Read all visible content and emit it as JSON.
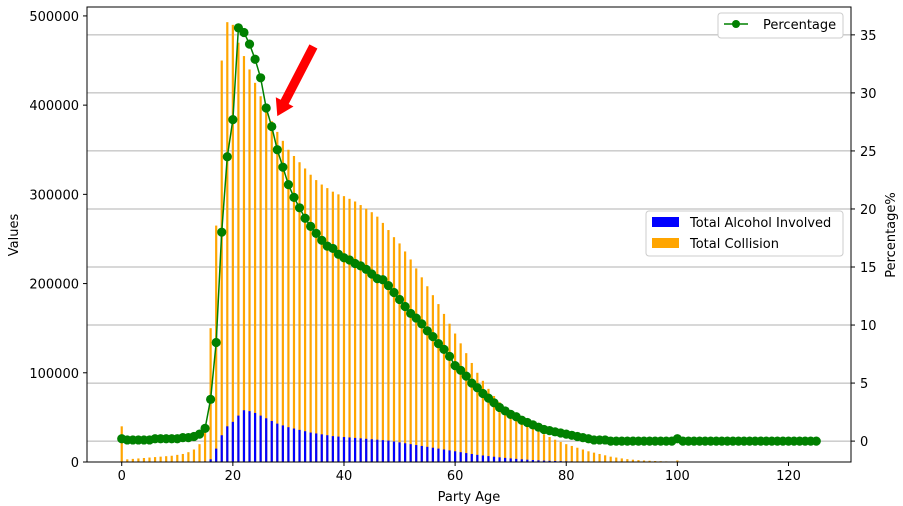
{
  "chart_data": {
    "type": "bar",
    "title": "",
    "xlabel": "Party Age",
    "ylabel": "Values",
    "y2label": "Percentage%",
    "xlim": [
      -6.25,
      131.25
    ],
    "ylim": [
      0,
      510000
    ],
    "y2lim": [
      -1.8,
      37.4
    ],
    "x_ticks": [
      "0",
      "20",
      "40",
      "60",
      "80",
      "100",
      "120"
    ],
    "y_ticks": [
      "0",
      "100000",
      "200000",
      "300000",
      "400000",
      "500000"
    ],
    "y2_ticks": [
      "0",
      "5",
      "10",
      "15",
      "20",
      "25",
      "30",
      "35"
    ],
    "grid": "right-axis horizontal",
    "legend": {
      "bars_position": "center-right",
      "line_position": "top-right"
    },
    "colors": {
      "alcohol": "#0000ff",
      "collision": "#ffa500",
      "percentage": "#008000",
      "arrow": "#ff0000",
      "grid": "#b0b0b0"
    },
    "x": [
      0,
      1,
      2,
      3,
      4,
      5,
      6,
      7,
      8,
      9,
      10,
      11,
      12,
      13,
      14,
      15,
      16,
      17,
      18,
      19,
      20,
      21,
      22,
      23,
      24,
      25,
      26,
      27,
      28,
      29,
      30,
      31,
      32,
      33,
      34,
      35,
      36,
      37,
      38,
      39,
      40,
      41,
      42,
      43,
      44,
      45,
      46,
      47,
      48,
      49,
      50,
      51,
      52,
      53,
      54,
      55,
      56,
      57,
      58,
      59,
      60,
      61,
      62,
      63,
      64,
      65,
      66,
      67,
      68,
      69,
      70,
      71,
      72,
      73,
      74,
      75,
      76,
      77,
      78,
      79,
      80,
      81,
      82,
      83,
      84,
      85,
      86,
      87,
      88,
      89,
      90,
      91,
      92,
      93,
      94,
      95,
      96,
      97,
      98,
      99,
      100,
      101,
      102,
      103,
      104,
      105,
      106,
      107,
      108,
      109,
      110,
      111,
      112,
      113,
      114,
      115,
      116,
      117,
      118,
      119,
      120,
      121,
      122,
      123,
      124,
      125
    ],
    "series": [
      {
        "name": "Total Alcohol Involved",
        "axis": "left",
        "values": [
          100,
          50,
          50,
          50,
          50,
          50,
          50,
          50,
          60,
          60,
          70,
          80,
          100,
          150,
          250,
          700,
          3000,
          15000,
          30000,
          40000,
          45000,
          52000,
          58000,
          57000,
          55000,
          52000,
          49000,
          46000,
          43000,
          41000,
          39000,
          37500,
          36000,
          34500,
          33000,
          32000,
          31000,
          30000,
          29000,
          28500,
          28000,
          27500,
          27000,
          26500,
          26000,
          25500,
          25000,
          24500,
          24000,
          23000,
          22000,
          21000,
          20000,
          19000,
          18000,
          17000,
          16000,
          15000,
          14000,
          13000,
          12000,
          11000,
          10000,
          9000,
          8000,
          7300,
          6600,
          5900,
          5200,
          4600,
          4000,
          3500,
          3000,
          2600,
          2200,
          1900,
          1600,
          1350,
          1150,
          950,
          800,
          650,
          530,
          430,
          340,
          270,
          210,
          160,
          120,
          90,
          70,
          55,
          40,
          30,
          25,
          20,
          15,
          12,
          10,
          8,
          30,
          8,
          6,
          5,
          4,
          4,
          3,
          3,
          3,
          2,
          2,
          2,
          2,
          2,
          1,
          1,
          1,
          1,
          1,
          1,
          1,
          1,
          1,
          1,
          1,
          1
        ]
      },
      {
        "name": "Total Collision",
        "axis": "left",
        "values": [
          40000,
          3000,
          3500,
          4000,
          4500,
          5000,
          5500,
          6000,
          6500,
          7000,
          8000,
          9000,
          11000,
          14000,
          20000,
          40000,
          150000,
          265000,
          450000,
          493000,
          490000,
          470000,
          455000,
          440000,
          425000,
          410000,
          395000,
          382000,
          370000,
          360000,
          350000,
          343000,
          336000,
          329000,
          322000,
          316000,
          311000,
          307000,
          303000,
          300000,
          298000,
          295000,
          292000,
          288000,
          284000,
          280000,
          275000,
          268000,
          260000,
          252000,
          245000,
          236000,
          227000,
          217000,
          207000,
          197000,
          187000,
          177000,
          166000,
          155000,
          144000,
          133000,
          122000,
          111000,
          100000,
          91000,
          82000,
          74000,
          67000,
          61000,
          56000,
          51000,
          46000,
          42000,
          38000,
          34000,
          31000,
          28000,
          25000,
          22500,
          20000,
          18000,
          16000,
          14000,
          12000,
          10500,
          9000,
          7500,
          6000,
          5000,
          4000,
          3200,
          2600,
          2100,
          1700,
          1400,
          1100,
          900,
          700,
          600,
          1700,
          450,
          380,
          320,
          270,
          230,
          200,
          170,
          150,
          130,
          110,
          100,
          90,
          80,
          70,
          60,
          50,
          45,
          40,
          35,
          30,
          28,
          26,
          24,
          22,
          200
        ]
      },
      {
        "name": "Percentage",
        "axis": "right",
        "values": [
          0.2,
          0.1,
          0.1,
          0.1,
          0.1,
          0.1,
          0.2,
          0.2,
          0.2,
          0.2,
          0.2,
          0.3,
          0.3,
          0.4,
          0.6,
          1.1,
          3.6,
          8.5,
          18,
          24.5,
          27.7,
          35.6,
          35.2,
          34.2,
          32.9,
          31.3,
          28.7,
          27.1,
          25.1,
          23.6,
          22.1,
          21.0,
          20.1,
          19.2,
          18.5,
          17.9,
          17.3,
          16.8,
          16.6,
          16.1,
          15.8,
          15.6,
          15.3,
          15.1,
          14.8,
          14.4,
          14.0,
          13.9,
          13.4,
          12.8,
          12.2,
          11.6,
          11.0,
          10.6,
          10.1,
          9.5,
          9.0,
          8.4,
          7.9,
          7.3,
          6.5,
          6.1,
          5.6,
          5.0,
          4.6,
          4.1,
          3.7,
          3.3,
          2.9,
          2.6,
          2.3,
          2.1,
          1.8,
          1.6,
          1.4,
          1.2,
          1.0,
          0.9,
          0.8,
          0.7,
          0.6,
          0.5,
          0.4,
          0.3,
          0.2,
          0.1,
          0.1,
          0.1,
          0.0,
          0.0,
          0.0,
          0.0,
          0.0,
          0.0,
          0.0,
          0.0,
          0.0,
          0.0,
          0.0,
          0.0,
          0.2,
          0.0,
          0.0,
          0.0,
          0.0,
          0.0,
          0.0,
          0.0,
          0.0,
          0.0,
          0.0,
          0.0,
          0.0,
          0.0,
          0.0,
          0.0,
          0.0,
          0.0,
          0.0,
          0.0,
          0.0,
          0.0,
          0.0,
          0.0,
          0.0,
          0.0
        ]
      }
    ],
    "annotation": {
      "type": "arrow",
      "from": [
        34.5,
        34.0
      ],
      "to": [
        28,
        28.0
      ]
    }
  }
}
